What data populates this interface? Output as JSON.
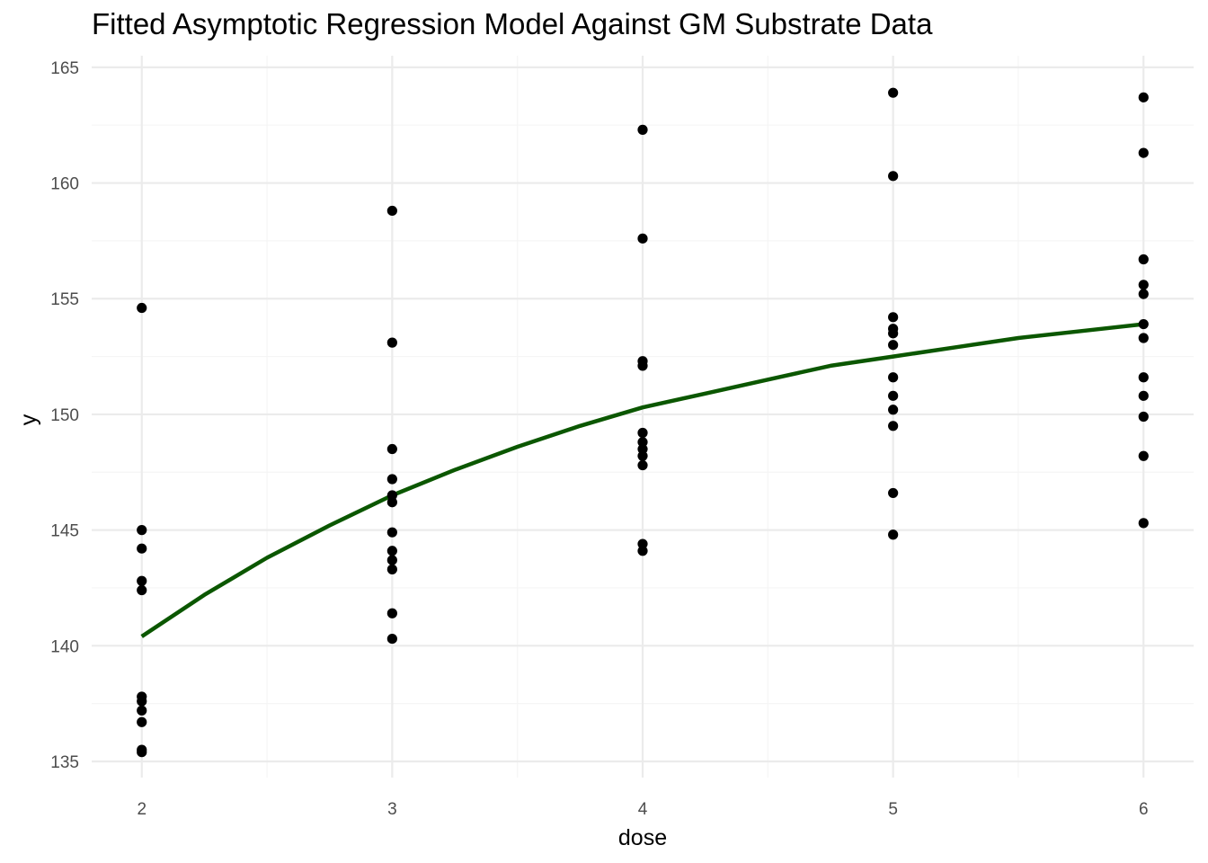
{
  "chart_data": {
    "type": "scatter",
    "title": "Fitted Asymptotic Regression Model Against GM Substrate Data",
    "xlabel": "dose",
    "ylabel": "y",
    "xlim": [
      1.8,
      6.2
    ],
    "ylim": [
      134.3,
      165.5
    ],
    "xticks": [
      2,
      3,
      4,
      5,
      6
    ],
    "yticks": [
      135,
      140,
      145,
      150,
      155,
      160,
      165
    ],
    "x_minor_ticks": [
      2.5,
      3.5,
      4.5,
      5.5
    ],
    "y_minor_ticks": [
      137.5,
      142.5,
      147.5,
      152.5,
      157.5,
      162.5
    ],
    "grid": true,
    "points": [
      {
        "x": 2,
        "values": [
          154.6,
          145.0,
          144.2,
          142.8,
          142.4,
          137.8,
          137.6,
          137.2,
          136.7,
          135.5,
          135.4
        ]
      },
      {
        "x": 3,
        "values": [
          158.8,
          153.1,
          148.5,
          147.2,
          146.5,
          146.2,
          144.9,
          144.1,
          143.7,
          143.3,
          141.4,
          140.3
        ]
      },
      {
        "x": 4,
        "values": [
          162.3,
          157.6,
          152.3,
          152.1,
          149.2,
          148.8,
          148.5,
          148.2,
          147.8,
          144.4,
          144.1
        ]
      },
      {
        "x": 5,
        "values": [
          163.9,
          160.3,
          154.2,
          153.7,
          153.5,
          153.0,
          151.6,
          150.8,
          150.2,
          149.5,
          146.6,
          144.8
        ]
      },
      {
        "x": 6,
        "values": [
          163.7,
          161.3,
          156.7,
          155.6,
          155.2,
          153.9,
          153.3,
          151.6,
          150.8,
          149.9,
          148.2,
          145.3
        ]
      }
    ],
    "fitted_curve": {
      "x": [
        2.0,
        2.25,
        2.5,
        2.75,
        3.0,
        3.25,
        3.5,
        3.75,
        4.0,
        4.25,
        4.5,
        4.75,
        5.0,
        5.25,
        5.5,
        5.75,
        6.0
      ],
      "y": [
        140.4,
        142.2,
        143.8,
        145.2,
        146.5,
        147.6,
        148.6,
        149.5,
        150.3,
        150.9,
        151.5,
        152.1,
        152.5,
        152.9,
        153.3,
        153.6,
        153.9
      ]
    },
    "colors": {
      "points": "#000000",
      "curve": "#0b5700",
      "grid_major": "#ebebeb",
      "grid_minor": "#f5f5f5",
      "tick_text": "#4d4d4d"
    }
  }
}
